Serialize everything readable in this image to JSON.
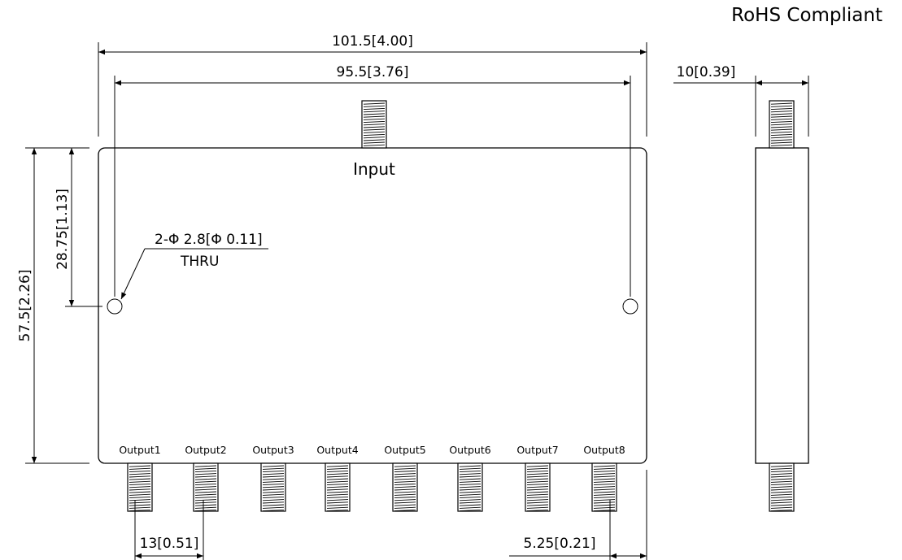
{
  "header": {
    "compliance": "RoHS Compliant"
  },
  "top_view": {
    "input_label": "Input",
    "outputs": [
      "Output1",
      "Output2",
      "Output3",
      "Output4",
      "Output5",
      "Output6",
      "Output7",
      "Output8"
    ],
    "hole_note_line1": "2-Φ 2.8[Φ 0.11]",
    "hole_note_line2": "THRU"
  },
  "dimensions": {
    "overall_length": "101.5[4.00]",
    "hole_spacing": "95.5[3.76]",
    "overall_width": "57.5[2.26]",
    "hole_offset": "28.75[1.13]",
    "output_pitch": "13[0.51]",
    "edge_offset": "5.25[0.21]",
    "thickness": "10[0.39]"
  }
}
